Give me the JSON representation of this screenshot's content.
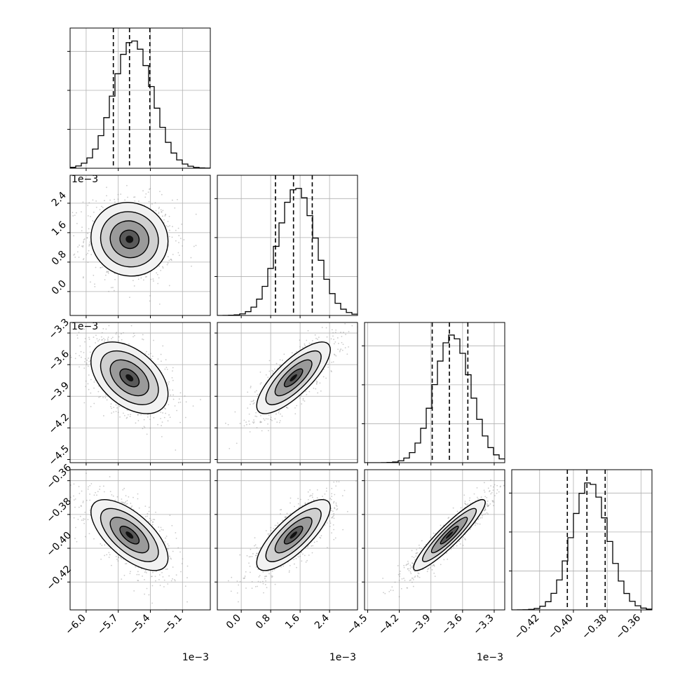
{
  "chart_data": {
    "type": "corner",
    "grid": true,
    "parameters": [
      {
        "range": [
          -0.00615,
          -0.00484
        ],
        "ticks": [
          -6.0,
          -5.7,
          -5.4,
          -5.1
        ],
        "tick_labels": [
          "−6.0",
          "−5.7",
          "−5.4",
          "−5.1"
        ],
        "offset_label": "1e−3",
        "quantiles": [
          -0.005746,
          -0.005595,
          -0.005405
        ],
        "mean": -0.005595,
        "sd": 0.00018,
        "hist_peak": 1.0
      },
      {
        "range": [
          -0.00065,
          0.00316
        ],
        "ticks": [
          0.0,
          0.8,
          1.6,
          2.4
        ],
        "tick_labels": [
          "0.0",
          "0.8",
          "1.6",
          "2.4"
        ],
        "offset_label": "1e−3",
        "quantiles": [
          0.00093,
          0.00142,
          0.00193
        ],
        "mean": 0.00142,
        "sd": 0.0005,
        "hist_peak": 1.0
      },
      {
        "range": [
          -0.00453,
          -0.0032
        ],
        "ticks": [
          -4.5,
          -4.2,
          -3.9,
          -3.6,
          -3.3
        ],
        "tick_labels": [
          "−4.5",
          "−4.2",
          "−3.9",
          "−3.6",
          "−3.3"
        ],
        "offset_label": "1e−3",
        "quantiles": [
          -0.003888,
          -0.003725,
          -0.00355
        ],
        "mean": -0.003725,
        "sd": 0.00017,
        "hist_peak": 1.0
      },
      {
        "range": [
          -0.4365,
          -0.3535
        ],
        "ticks": [
          -0.42,
          -0.4,
          -0.38,
          -0.36
        ],
        "tick_labels": [
          "−0.42",
          "−0.40",
          "−0.38",
          "−0.36"
        ],
        "offset_label": "",
        "quantiles": [
          -0.4036,
          -0.392,
          -0.3812
        ],
        "mean": -0.3922,
        "sd": 0.0105,
        "hist_peak": 1.0
      }
    ],
    "correlations": {
      "1-0": -0.05,
      "2-0": -0.45,
      "2-1": 0.78,
      "3-0": -0.65,
      "3-1": 0.78,
      "3-2": 0.92
    },
    "colors": {
      "line": "#000000",
      "density": "#000000",
      "scatter": "#8c8c8c",
      "grid": "#b0b0b0"
    }
  }
}
